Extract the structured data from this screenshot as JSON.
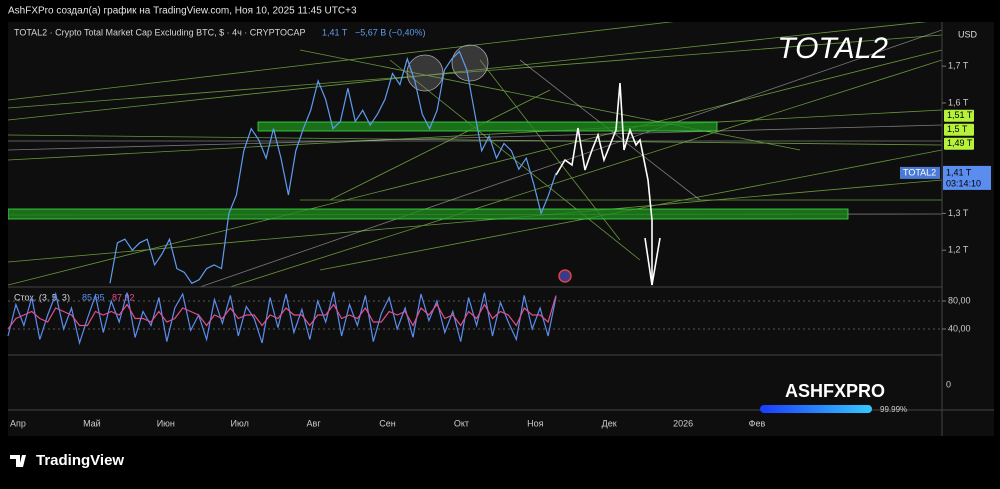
{
  "header": "AshFXPro создал(а) график на TradingView.com, Ноя 10, 2025 11:45 UTC+3",
  "brand": "TradingView",
  "logo": {
    "name": "ASHFXPRO",
    "progress_label": "99.99%"
  },
  "empty_pane": {
    "tick_label": "0"
  },
  "xtick_labels": [
    "Апр",
    "Май",
    "Июн",
    "Июл",
    "Авг",
    "Сен",
    "Окт",
    "Ноя",
    "Дек",
    "2026",
    "Фев"
  ],
  "chart_data": [
    {
      "type": "line",
      "title": "TOTAL2 · Crypto Total Market Cap Excluding BTC, $ · 4ч · CRYPTOCAP",
      "last_value_label": "1,41 T",
      "change_label": "−5,67 B (−0,40%)",
      "watermark": "TOTAL2",
      "currency": "USD",
      "color": "#5f9cef",
      "values": [
        1.11,
        1.22,
        1.23,
        1.2,
        1.22,
        1.23,
        1.16,
        1.19,
        1.23,
        1.15,
        1.14,
        1.11,
        1.12,
        1.15,
        1.16,
        1.15,
        1.3,
        1.35,
        1.47,
        1.53,
        1.5,
        1.45,
        1.53,
        1.45,
        1.35,
        1.47,
        1.53,
        1.58,
        1.66,
        1.61,
        1.53,
        1.55,
        1.64,
        1.55,
        1.58,
        1.54,
        1.57,
        1.61,
        1.68,
        1.65,
        1.72,
        1.66,
        1.57,
        1.53,
        1.58,
        1.69,
        1.72,
        1.74,
        1.69,
        1.58,
        1.47,
        1.51,
        1.45,
        1.49,
        1.47,
        1.42,
        1.45,
        1.38,
        1.3,
        1.35,
        1.41
      ],
      "ylim": [
        1.1,
        1.82
      ],
      "yticks": [
        {
          "value": 1.2,
          "label": "1,2 T"
        },
        {
          "value": 1.3,
          "label": "1,3 T"
        },
        {
          "value": 1.6,
          "label": "1,6 T"
        },
        {
          "value": 1.7,
          "label": "1,7 T"
        }
      ],
      "price_labels": [
        {
          "value": 1.51,
          "label": "1,51 T"
        },
        {
          "value": 1.5,
          "label": "1,5 T"
        },
        {
          "value": 1.49,
          "label": "1,49 T"
        }
      ],
      "last_badge": {
        "name": "TOTAL2",
        "value": 1.41,
        "label": "1,41 T",
        "countdown": "03:14:10"
      }
    },
    {
      "type": "line",
      "title": "Стох. (3, 5, 3)",
      "ylim": [
        0,
        100
      ],
      "yticks": [
        {
          "value": 40,
          "label": "40,00"
        },
        {
          "value": 80,
          "label": "80,00"
        }
      ],
      "series": [
        {
          "color": "#5b8def",
          "value_label": "85,95",
          "values": [
            30,
            75,
            45,
            85,
            25,
            60,
            90,
            40,
            70,
            20,
            55,
            88,
            35,
            80,
            50,
            92,
            28,
            65,
            45,
            85,
            22,
            70,
            90,
            38,
            60,
            25,
            82,
            48,
            88,
            30,
            72,
            55,
            20,
            85,
            42,
            90,
            35,
            68,
            25,
            80,
            50,
            93,
            30,
            75,
            45,
            88,
            22,
            62,
            85,
            40,
            70,
            28,
            90,
            52,
            80,
            35,
            65,
            22,
            85,
            45,
            92,
            30,
            78,
            50,
            25,
            88,
            40,
            70,
            30,
            85.95
          ]
        },
        {
          "color": "#e0508a",
          "value_label": "87,92",
          "values": [
            40,
            55,
            60,
            65,
            55,
            50,
            70,
            65,
            60,
            45,
            45,
            65,
            60,
            65,
            60,
            75,
            55,
            55,
            50,
            65,
            50,
            55,
            70,
            65,
            60,
            45,
            60,
            55,
            70,
            55,
            60,
            60,
            45,
            60,
            55,
            70,
            60,
            60,
            45,
            60,
            60,
            75,
            55,
            60,
            55,
            70,
            50,
            50,
            65,
            60,
            65,
            45,
            70,
            60,
            75,
            55,
            60,
            45,
            65,
            55,
            75,
            55,
            65,
            60,
            45,
            70,
            60,
            60,
            50,
            87.92
          ]
        }
      ]
    }
  ]
}
